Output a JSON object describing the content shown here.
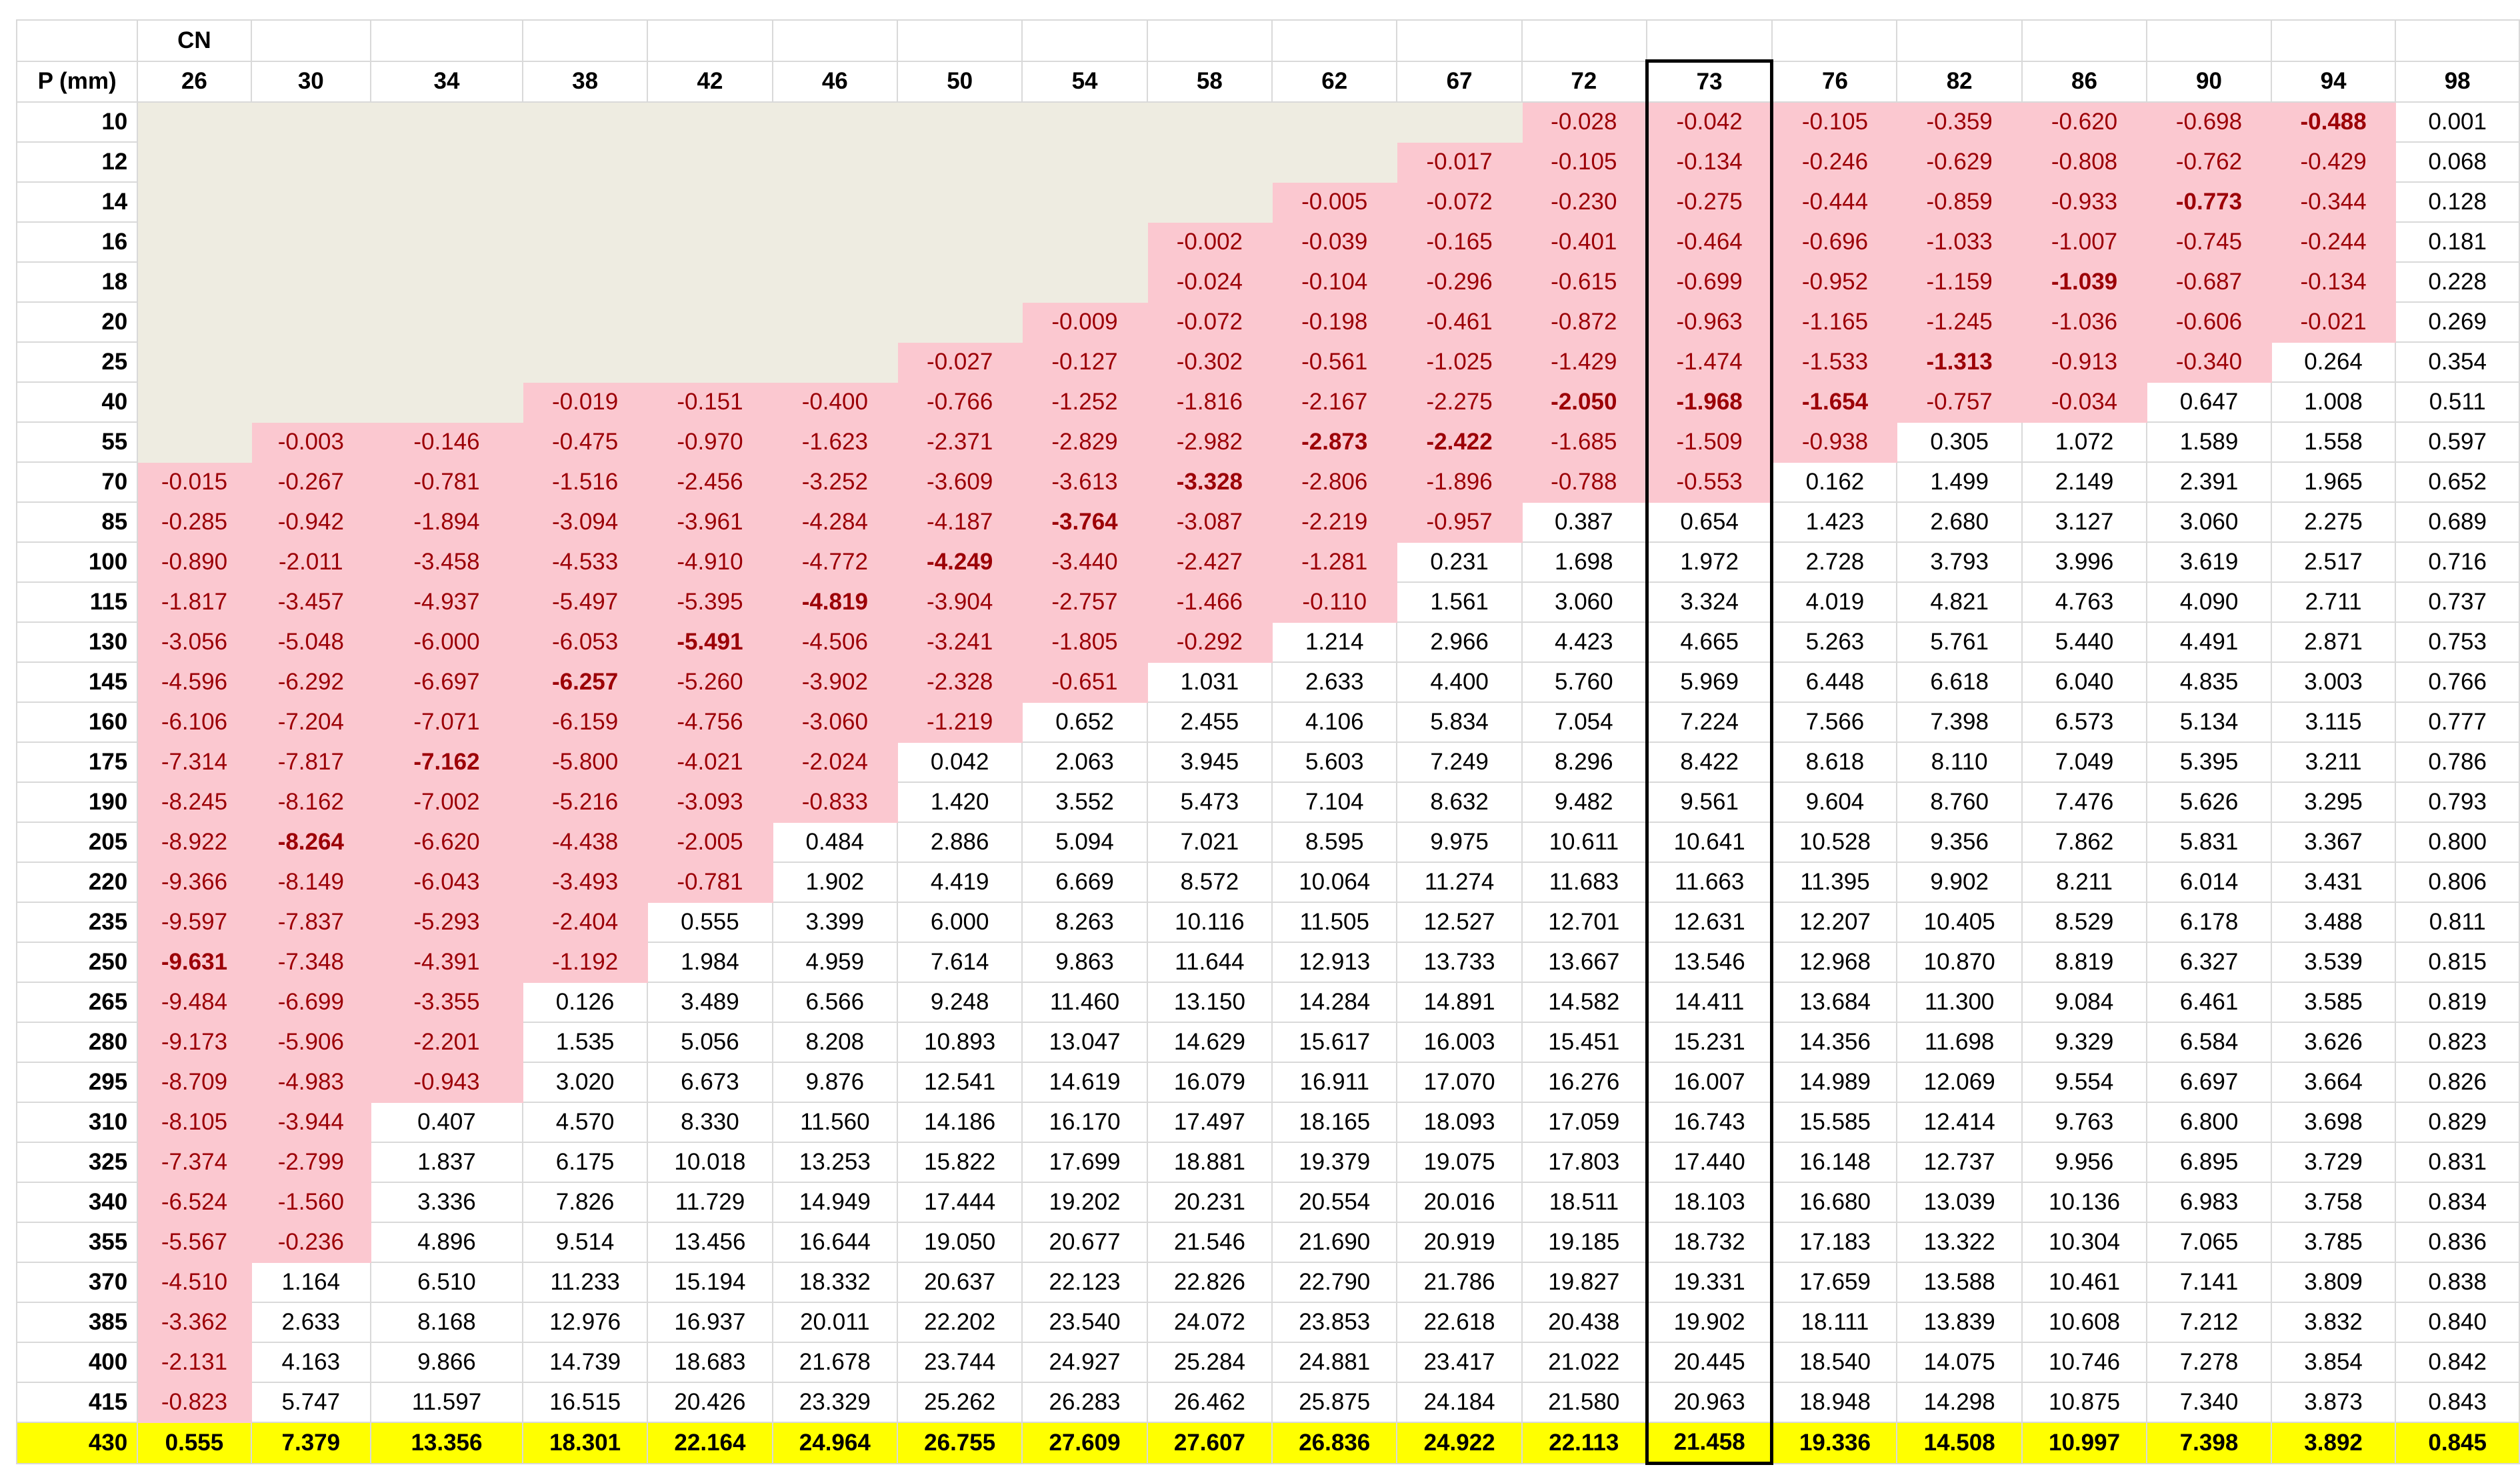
{
  "table": {
    "axis_title": "CN",
    "row_title": "P (mm)",
    "columns": [
      26,
      30,
      34,
      38,
      42,
      46,
      50,
      54,
      58,
      62,
      67,
      72,
      73,
      76,
      82,
      86,
      90,
      94,
      98
    ],
    "rows": [
      {
        "p": 10,
        "values": [
          null,
          null,
          null,
          null,
          null,
          null,
          null,
          null,
          null,
          null,
          null,
          "-0.028",
          "-0.042",
          "-0.105",
          "-0.359",
          "-0.620",
          "-0.698",
          "-0.488",
          "0.001"
        ]
      },
      {
        "p": 12,
        "values": [
          null,
          null,
          null,
          null,
          null,
          null,
          null,
          null,
          null,
          null,
          "-0.017",
          "-0.105",
          "-0.134",
          "-0.246",
          "-0.629",
          "-0.808",
          "-0.762",
          "-0.429",
          "0.068"
        ]
      },
      {
        "p": 14,
        "values": [
          null,
          null,
          null,
          null,
          null,
          null,
          null,
          null,
          null,
          "-0.005",
          "-0.072",
          "-0.230",
          "-0.275",
          "-0.444",
          "-0.859",
          "-0.933",
          "-0.773",
          "-0.344",
          "0.128"
        ]
      },
      {
        "p": 16,
        "values": [
          null,
          null,
          null,
          null,
          null,
          null,
          null,
          null,
          "-0.002",
          "-0.039",
          "-0.165",
          "-0.401",
          "-0.464",
          "-0.696",
          "-1.033",
          "-1.007",
          "-0.745",
          "-0.244",
          "0.181"
        ]
      },
      {
        "p": 18,
        "values": [
          null,
          null,
          null,
          null,
          null,
          null,
          null,
          null,
          "-0.024",
          "-0.104",
          "-0.296",
          "-0.615",
          "-0.699",
          "-0.952",
          "-1.159",
          "-1.039",
          "-0.687",
          "-0.134",
          "0.228"
        ]
      },
      {
        "p": 20,
        "values": [
          null,
          null,
          null,
          null,
          null,
          null,
          null,
          "-0.009",
          "-0.072",
          "-0.198",
          "-0.461",
          "-0.872",
          "-0.963",
          "-1.165",
          "-1.245",
          "-1.036",
          "-0.606",
          "-0.021",
          "0.269"
        ]
      },
      {
        "p": 25,
        "values": [
          null,
          null,
          null,
          null,
          null,
          null,
          "-0.027",
          "-0.127",
          "-0.302",
          "-0.561",
          "-1.025",
          "-1.429",
          "-1.474",
          "-1.533",
          "-1.313",
          "-0.913",
          "-0.340",
          "0.264",
          "0.354"
        ]
      },
      {
        "p": 40,
        "values": [
          null,
          null,
          null,
          "-0.019",
          "-0.151",
          "-0.400",
          "-0.766",
          "-1.252",
          "-1.816",
          "-2.167",
          "-2.275",
          "-2.050",
          "-1.968",
          "-1.654",
          "-0.757",
          "-0.034",
          "0.647",
          "1.008",
          "0.511"
        ]
      },
      {
        "p": 55,
        "values": [
          null,
          "-0.003",
          "-0.146",
          "-0.475",
          "-0.970",
          "-1.623",
          "-2.371",
          "-2.829",
          "-2.982",
          "-2.873",
          "-2.422",
          "-1.685",
          "-1.509",
          "-0.938",
          "0.305",
          "1.072",
          "1.589",
          "1.558",
          "0.597"
        ]
      },
      {
        "p": 70,
        "values": [
          "-0.015",
          "-0.267",
          "-0.781",
          "-1.516",
          "-2.456",
          "-3.252",
          "-3.609",
          "-3.613",
          "-3.328",
          "-2.806",
          "-1.896",
          "-0.788",
          "-0.553",
          "0.162",
          "1.499",
          "2.149",
          "2.391",
          "1.965",
          "0.652"
        ]
      },
      {
        "p": 85,
        "values": [
          "-0.285",
          "-0.942",
          "-1.894",
          "-3.094",
          "-3.961",
          "-4.284",
          "-4.187",
          "-3.764",
          "-3.087",
          "-2.219",
          "-0.957",
          "0.387",
          "0.654",
          "1.423",
          "2.680",
          "3.127",
          "3.060",
          "2.275",
          "0.689"
        ]
      },
      {
        "p": 100,
        "values": [
          "-0.890",
          "-2.011",
          "-3.458",
          "-4.533",
          "-4.910",
          "-4.772",
          "-4.249",
          "-3.440",
          "-2.427",
          "-1.281",
          "0.231",
          "1.698",
          "1.972",
          "2.728",
          "3.793",
          "3.996",
          "3.619",
          "2.517",
          "0.716"
        ]
      },
      {
        "p": 115,
        "values": [
          "-1.817",
          "-3.457",
          "-4.937",
          "-5.497",
          "-5.395",
          "-4.819",
          "-3.904",
          "-2.757",
          "-1.466",
          "-0.110",
          "1.561",
          "3.060",
          "3.324",
          "4.019",
          "4.821",
          "4.763",
          "4.090",
          "2.711",
          "0.737"
        ]
      },
      {
        "p": 130,
        "values": [
          "-3.056",
          "-5.048",
          "-6.000",
          "-6.053",
          "-5.491",
          "-4.506",
          "-3.241",
          "-1.805",
          "-0.292",
          "1.214",
          "2.966",
          "4.423",
          "4.665",
          "5.263",
          "5.761",
          "5.440",
          "4.491",
          "2.871",
          "0.753"
        ]
      },
      {
        "p": 145,
        "values": [
          "-4.596",
          "-6.292",
          "-6.697",
          "-6.257",
          "-5.260",
          "-3.902",
          "-2.328",
          "-0.651",
          "1.031",
          "2.633",
          "4.400",
          "5.760",
          "5.969",
          "6.448",
          "6.618",
          "6.040",
          "4.835",
          "3.003",
          "0.766"
        ]
      },
      {
        "p": 160,
        "values": [
          "-6.106",
          "-7.204",
          "-7.071",
          "-6.159",
          "-4.756",
          "-3.060",
          "-1.219",
          "0.652",
          "2.455",
          "4.106",
          "5.834",
          "7.054",
          "7.224",
          "7.566",
          "7.398",
          "6.573",
          "5.134",
          "3.115",
          "0.777"
        ]
      },
      {
        "p": 175,
        "values": [
          "-7.314",
          "-7.817",
          "-7.162",
          "-5.800",
          "-4.021",
          "-2.024",
          "0.042",
          "2.063",
          "3.945",
          "5.603",
          "7.249",
          "8.296",
          "8.422",
          "8.618",
          "8.110",
          "7.049",
          "5.395",
          "3.211",
          "0.786"
        ]
      },
      {
        "p": 190,
        "values": [
          "-8.245",
          "-8.162",
          "-7.002",
          "-5.216",
          "-3.093",
          "-0.833",
          "1.420",
          "3.552",
          "5.473",
          "7.104",
          "8.632",
          "9.482",
          "9.561",
          "9.604",
          "8.760",
          "7.476",
          "5.626",
          "3.295",
          "0.793"
        ]
      },
      {
        "p": 205,
        "values": [
          "-8.922",
          "-8.264",
          "-6.620",
          "-4.438",
          "-2.005",
          "0.484",
          "2.886",
          "5.094",
          "7.021",
          "8.595",
          "9.975",
          "10.611",
          "10.641",
          "10.528",
          "9.356",
          "7.862",
          "5.831",
          "3.367",
          "0.800"
        ]
      },
      {
        "p": 220,
        "values": [
          "-9.366",
          "-8.149",
          "-6.043",
          "-3.493",
          "-0.781",
          "1.902",
          "4.419",
          "6.669",
          "8.572",
          "10.064",
          "11.274",
          "11.683",
          "11.663",
          "11.395",
          "9.902",
          "8.211",
          "6.014",
          "3.431",
          "0.806"
        ]
      },
      {
        "p": 235,
        "values": [
          "-9.597",
          "-7.837",
          "-5.293",
          "-2.404",
          "0.555",
          "3.399",
          "6.000",
          "8.263",
          "10.116",
          "11.505",
          "12.527",
          "12.701",
          "12.631",
          "12.207",
          "10.405",
          "8.529",
          "6.178",
          "3.488",
          "0.811"
        ]
      },
      {
        "p": 250,
        "values": [
          "-9.631",
          "-7.348",
          "-4.391",
          "-1.192",
          "1.984",
          "4.959",
          "7.614",
          "9.863",
          "11.644",
          "12.913",
          "13.733",
          "13.667",
          "13.546",
          "12.968",
          "10.870",
          "8.819",
          "6.327",
          "3.539",
          "0.815"
        ]
      },
      {
        "p": 265,
        "values": [
          "-9.484",
          "-6.699",
          "-3.355",
          "0.126",
          "3.489",
          "6.566",
          "9.248",
          "11.460",
          "13.150",
          "14.284",
          "14.891",
          "14.582",
          "14.411",
          "13.684",
          "11.300",
          "9.084",
          "6.461",
          "3.585",
          "0.819"
        ]
      },
      {
        "p": 280,
        "values": [
          "-9.173",
          "-5.906",
          "-2.201",
          "1.535",
          "5.056",
          "8.208",
          "10.893",
          "13.047",
          "14.629",
          "15.617",
          "16.003",
          "15.451",
          "15.231",
          "14.356",
          "11.698",
          "9.329",
          "6.584",
          "3.626",
          "0.823"
        ]
      },
      {
        "p": 295,
        "values": [
          "-8.709",
          "-4.983",
          "-0.943",
          "3.020",
          "6.673",
          "9.876",
          "12.541",
          "14.619",
          "16.079",
          "16.911",
          "17.070",
          "16.276",
          "16.007",
          "14.989",
          "12.069",
          "9.554",
          "6.697",
          "3.664",
          "0.826"
        ]
      },
      {
        "p": 310,
        "values": [
          "-8.105",
          "-3.944",
          "0.407",
          "4.570",
          "8.330",
          "11.560",
          "14.186",
          "16.170",
          "17.497",
          "18.165",
          "18.093",
          "17.059",
          "16.743",
          "15.585",
          "12.414",
          "9.763",
          "6.800",
          "3.698",
          "0.829"
        ]
      },
      {
        "p": 325,
        "values": [
          "-7.374",
          "-2.799",
          "1.837",
          "6.175",
          "10.018",
          "13.253",
          "15.822",
          "17.699",
          "18.881",
          "19.379",
          "19.075",
          "17.803",
          "17.440",
          "16.148",
          "12.737",
          "9.956",
          "6.895",
          "3.729",
          "0.831"
        ]
      },
      {
        "p": 340,
        "values": [
          "-6.524",
          "-1.560",
          "3.336",
          "7.826",
          "11.729",
          "14.949",
          "17.444",
          "19.202",
          "20.231",
          "20.554",
          "20.016",
          "18.511",
          "18.103",
          "16.680",
          "13.039",
          "10.136",
          "6.983",
          "3.758",
          "0.834"
        ]
      },
      {
        "p": 355,
        "values": [
          "-5.567",
          "-0.236",
          "4.896",
          "9.514",
          "13.456",
          "16.644",
          "19.050",
          "20.677",
          "21.546",
          "21.690",
          "20.919",
          "19.185",
          "18.732",
          "17.183",
          "13.322",
          "10.304",
          "7.065",
          "3.785",
          "0.836"
        ]
      },
      {
        "p": 370,
        "values": [
          "-4.510",
          "1.164",
          "6.510",
          "11.233",
          "15.194",
          "18.332",
          "20.637",
          "22.123",
          "22.826",
          "22.790",
          "21.786",
          "19.827",
          "19.331",
          "17.659",
          "13.588",
          "10.461",
          "7.141",
          "3.809",
          "0.838"
        ]
      },
      {
        "p": 385,
        "values": [
          "-3.362",
          "2.633",
          "8.168",
          "12.976",
          "16.937",
          "20.011",
          "22.202",
          "23.540",
          "24.072",
          "23.853",
          "22.618",
          "20.438",
          "19.902",
          "18.111",
          "13.839",
          "10.608",
          "7.212",
          "3.832",
          "0.840"
        ]
      },
      {
        "p": 400,
        "values": [
          "-2.131",
          "4.163",
          "9.866",
          "14.739",
          "18.683",
          "21.678",
          "23.744",
          "24.927",
          "25.284",
          "24.881",
          "23.417",
          "21.022",
          "20.445",
          "18.540",
          "14.075",
          "10.746",
          "7.278",
          "3.854",
          "0.842"
        ]
      },
      {
        "p": 415,
        "values": [
          "-0.823",
          "5.747",
          "11.597",
          "16.515",
          "20.426",
          "23.329",
          "25.262",
          "26.283",
          "26.462",
          "25.875",
          "24.184",
          "21.580",
          "20.963",
          "18.948",
          "14.298",
          "10.875",
          "7.340",
          "3.873",
          "0.843"
        ]
      },
      {
        "p": 430,
        "values": [
          "0.555",
          "7.379",
          "13.356",
          "18.301",
          "22.164",
          "24.964",
          "26.755",
          "27.609",
          "27.607",
          "26.836",
          "24.922",
          "22.113",
          "21.458",
          "19.336",
          "14.508",
          "10.997",
          "7.398",
          "3.892",
          "0.845"
        ]
      }
    ]
  }
}
